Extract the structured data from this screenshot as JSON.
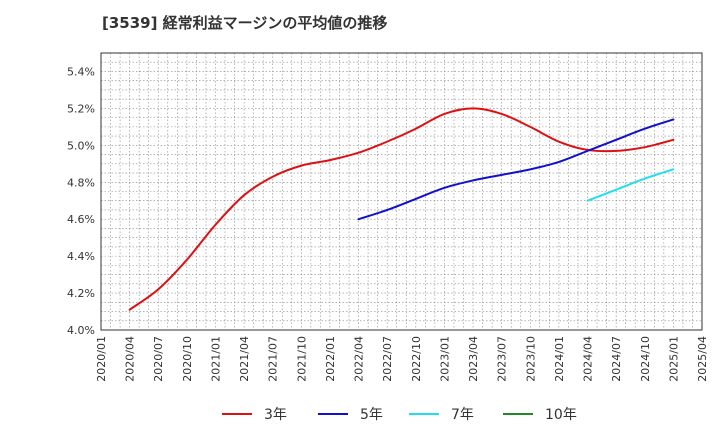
{
  "chart_data": {
    "type": "line",
    "title": "[3539]  経常利益マージンの平均値の推移",
    "xlabel": "",
    "ylabel": "",
    "x_ticks": [
      "2020/01",
      "2020/04",
      "2020/07",
      "2020/10",
      "2021/01",
      "2021/04",
      "2021/07",
      "2021/10",
      "2022/01",
      "2022/04",
      "2022/07",
      "2022/10",
      "2023/01",
      "2023/04",
      "2023/07",
      "2023/10",
      "2024/01",
      "2024/04",
      "2024/07",
      "2024/10",
      "2025/01",
      "2025/04"
    ],
    "y_ticks": [
      "4.0%",
      "4.2%",
      "4.4%",
      "4.6%",
      "4.8%",
      "5.0%",
      "5.2%",
      "5.4%"
    ],
    "ylim": [
      4.0,
      5.5
    ],
    "grid": true,
    "legend_position": "bottom",
    "series": [
      {
        "name": "3年",
        "color": "#dd1111",
        "points": [
          [
            "2020/04",
            4.11
          ],
          [
            "2020/07",
            4.22
          ],
          [
            "2020/10",
            4.38
          ],
          [
            "2021/01",
            4.57
          ],
          [
            "2021/04",
            4.73
          ],
          [
            "2021/07",
            4.83
          ],
          [
            "2021/10",
            4.89
          ],
          [
            "2022/01",
            4.92
          ],
          [
            "2022/04",
            4.96
          ],
          [
            "2022/07",
            5.02
          ],
          [
            "2022/10",
            5.09
          ],
          [
            "2023/01",
            5.17
          ],
          [
            "2023/04",
            5.2
          ],
          [
            "2023/07",
            5.17
          ],
          [
            "2023/10",
            5.1
          ],
          [
            "2024/01",
            5.02
          ],
          [
            "2024/04",
            4.975
          ],
          [
            "2024/07",
            4.97
          ],
          [
            "2024/10",
            4.99
          ],
          [
            "2025/01",
            5.03
          ]
        ]
      },
      {
        "name": "5年",
        "color": "#1111cc",
        "points": [
          [
            "2022/04",
            4.6
          ],
          [
            "2022/07",
            4.65
          ],
          [
            "2022/10",
            4.71
          ],
          [
            "2023/01",
            4.77
          ],
          [
            "2023/04",
            4.81
          ],
          [
            "2023/07",
            4.84
          ],
          [
            "2023/10",
            4.87
          ],
          [
            "2024/01",
            4.91
          ],
          [
            "2024/04",
            4.97
          ],
          [
            "2024/07",
            5.03
          ],
          [
            "2024/10",
            5.09
          ],
          [
            "2025/01",
            5.14
          ]
        ]
      },
      {
        "name": "7年",
        "color": "#22ddee",
        "points": [
          [
            "2024/04",
            4.7
          ],
          [
            "2024/07",
            4.76
          ],
          [
            "2024/10",
            4.82
          ],
          [
            "2025/01",
            4.87
          ]
        ]
      },
      {
        "name": "10年",
        "color": "#228822",
        "points": []
      }
    ]
  }
}
